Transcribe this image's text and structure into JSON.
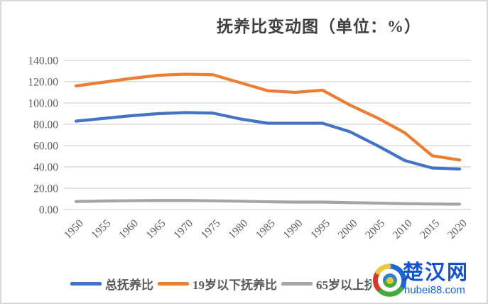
{
  "frame": {
    "border_color": "#d9d9d9",
    "background": "#ffffff"
  },
  "title": "抚养比变动图（单位：%）",
  "chart_data": {
    "type": "line",
    "title": "抚养比变动图（单位：%）",
    "xlabel": "",
    "ylabel": "",
    "categories": [
      "1950",
      "1955",
      "1960",
      "1965",
      "1970",
      "1975",
      "1980",
      "1985",
      "1990",
      "1995",
      "2000",
      "2005",
      "2010",
      "2015",
      "2020"
    ],
    "series": [
      {
        "name": "总抚养比",
        "color": "#4472C4",
        "values": [
          83,
          85.5,
          88,
          90,
          91,
          90.5,
          85,
          81,
          81,
          81,
          73,
          60,
          46,
          39,
          38
        ]
      },
      {
        "name": "19岁以下抚养比",
        "color": "#ED7D31",
        "values": [
          116,
          119.5,
          123,
          126,
          127,
          126.5,
          119,
          111.5,
          110,
          112,
          98,
          86,
          72,
          50.5,
          46.5
        ]
      },
      {
        "name": "65岁以上抚养比",
        "color": "#A5A5A5",
        "values": [
          7.5,
          8,
          8.3,
          8.5,
          8.5,
          8.2,
          7.8,
          7.3,
          7,
          7,
          6.5,
          6,
          5.5,
          5.2,
          5
        ]
      }
    ],
    "ylim": [
      0,
      140
    ],
    "y_ticks": [
      0,
      20,
      40,
      60,
      80,
      100,
      120,
      140
    ],
    "y_tick_labels": [
      "0.00",
      "20.00",
      "40.00",
      "60.00",
      "80.00",
      "100.00",
      "120.00",
      "140.00"
    ],
    "grid": true,
    "gridline_color": "#d9d9d9",
    "tick_label_color": "#595959",
    "x_tick_rotation": -45,
    "legend_position": "bottom"
  },
  "watermark": {
    "site_name": "楚汉网",
    "site_url": "hubei88.com",
    "text_color": "#1353cb",
    "icon": "globe-swirl-icon"
  }
}
